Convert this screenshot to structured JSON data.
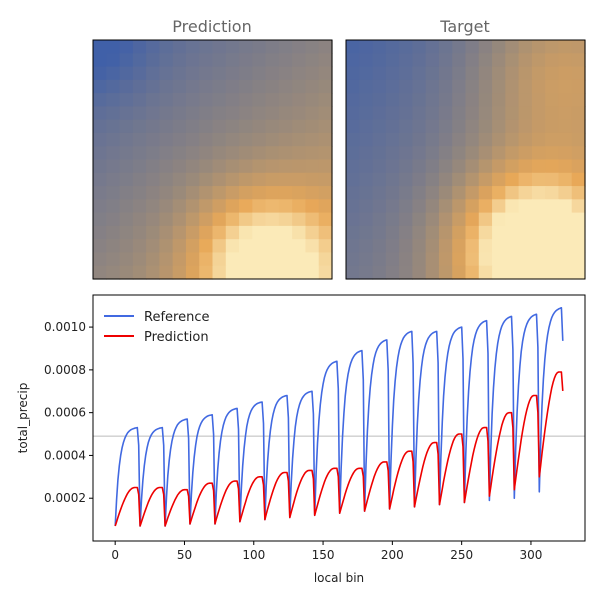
{
  "panels": [
    {
      "title": "Prediction"
    },
    {
      "title": "Target"
    }
  ],
  "chart_data": {
    "type": "line",
    "xlabel": "local bin",
    "ylabel": "total_precip",
    "xlim": [
      -16,
      339
    ],
    "ylim": [
      0.0,
      0.00115
    ],
    "xticks": [
      0,
      50,
      100,
      150,
      200,
      250,
      300
    ],
    "yticks": [
      0.0002,
      0.0004,
      0.0006,
      0.0008,
      0.001
    ],
    "ytick_labels": [
      "0.0002",
      "0.0004",
      "0.0006",
      "0.0008",
      "0.0010"
    ],
    "hline": 0.00049,
    "grid": false,
    "legend_position": "top-left",
    "segment_length": 18,
    "segment_count": 18,
    "series": [
      {
        "name": "Reference",
        "color": "#4169e1",
        "segment_start": [
          7e-05,
          7e-05,
          7e-05,
          8e-05,
          8e-05,
          9e-05,
          0.0001,
          0.00011,
          0.00012,
          0.00013,
          0.00014,
          0.00015,
          0.00016,
          0.00017,
          0.00018,
          0.00019,
          0.0002,
          0.00023
        ],
        "segment_peak": [
          0.00053,
          0.00053,
          0.00057,
          0.00059,
          0.00062,
          0.00065,
          0.00068,
          0.0007,
          0.00084,
          0.00089,
          0.00094,
          0.00098,
          0.00098,
          0.001,
          0.00103,
          0.00105,
          0.00106,
          0.00109
        ]
      },
      {
        "name": "Prediction",
        "color": "#ee0000",
        "segment_start": [
          7e-05,
          7e-05,
          7e-05,
          8e-05,
          8e-05,
          9e-05,
          0.0001,
          0.00011,
          0.00012,
          0.00013,
          0.00014,
          0.00015,
          0.00016,
          0.00017,
          0.00018,
          0.00021,
          0.00024,
          0.0003
        ],
        "segment_peak": [
          0.00025,
          0.00025,
          0.00024,
          0.00027,
          0.00028,
          0.0003,
          0.00032,
          0.00033,
          0.00034,
          0.00034,
          0.00037,
          0.00042,
          0.00046,
          0.0005,
          0.00053,
          0.0006,
          0.00068,
          0.00079
        ]
      }
    ]
  },
  "colors": {
    "heatmap_low": "#4060a8",
    "heatmap_mid": "#9a8a7a",
    "heatmap_high": "#e8a858",
    "heatmap_peak": "#fbeab8",
    "hline": "#bbbbbb"
  }
}
